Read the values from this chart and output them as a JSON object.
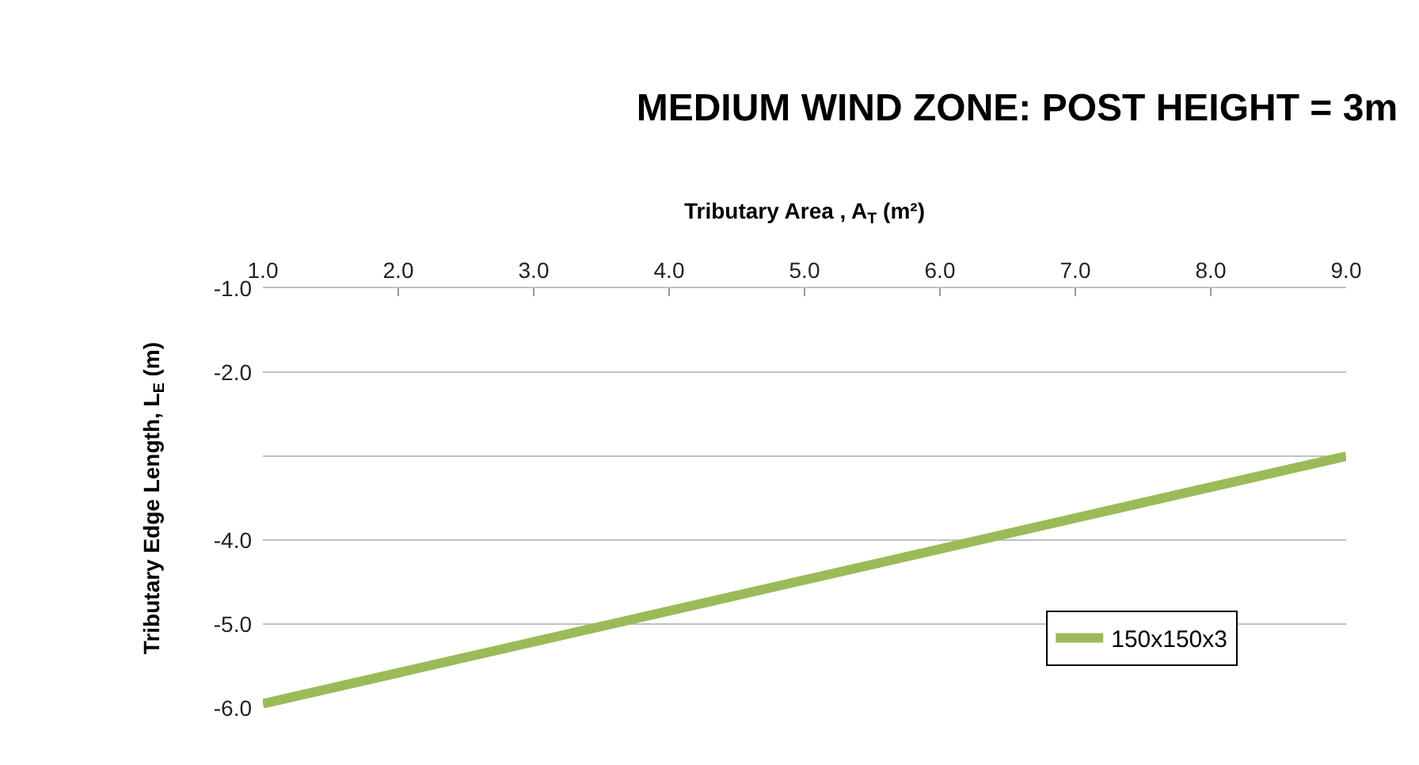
{
  "chart_data": {
    "type": "line",
    "title": "MEDIUM WIND ZONE: POST HEIGHT = 3m",
    "xlabel": "Tributary Area , A$_{T}$ (m²)",
    "ylabel": "Tributary Edge Length, L$_{E}$ (m)",
    "x": [
      1,
      9
    ],
    "series": [
      {
        "name": "150x150x3",
        "color": "#9bbb59",
        "values": [
          -5.95,
          -3.0
        ]
      }
    ],
    "xlim": [
      1,
      9
    ],
    "xticks": [
      {
        "value": 1,
        "label": "1.0"
      },
      {
        "value": 2,
        "label": "2.0"
      },
      {
        "value": 3,
        "label": "3.0"
      },
      {
        "value": 4,
        "label": "4.0"
      },
      {
        "value": 5,
        "label": "5.0"
      },
      {
        "value": 6,
        "label": "6.0"
      },
      {
        "value": 7,
        "label": "7.0"
      },
      {
        "value": 8,
        "label": "8.0"
      },
      {
        "value": 9,
        "label": "9.0"
      }
    ],
    "ylim": [
      -6,
      -1
    ],
    "yticks": [
      {
        "value": -1,
        "label": "-1.0"
      },
      {
        "value": -2,
        "label": "-2.0"
      },
      {
        "value": -3,
        "label": null
      },
      {
        "value": -4,
        "label": "-4.0"
      },
      {
        "value": -5,
        "label": "-5.0"
      },
      {
        "value": -6,
        "label": "-6.0"
      }
    ],
    "grid": "y",
    "legend": "bottom right",
    "marker": "none",
    "line_style": "solid"
  }
}
